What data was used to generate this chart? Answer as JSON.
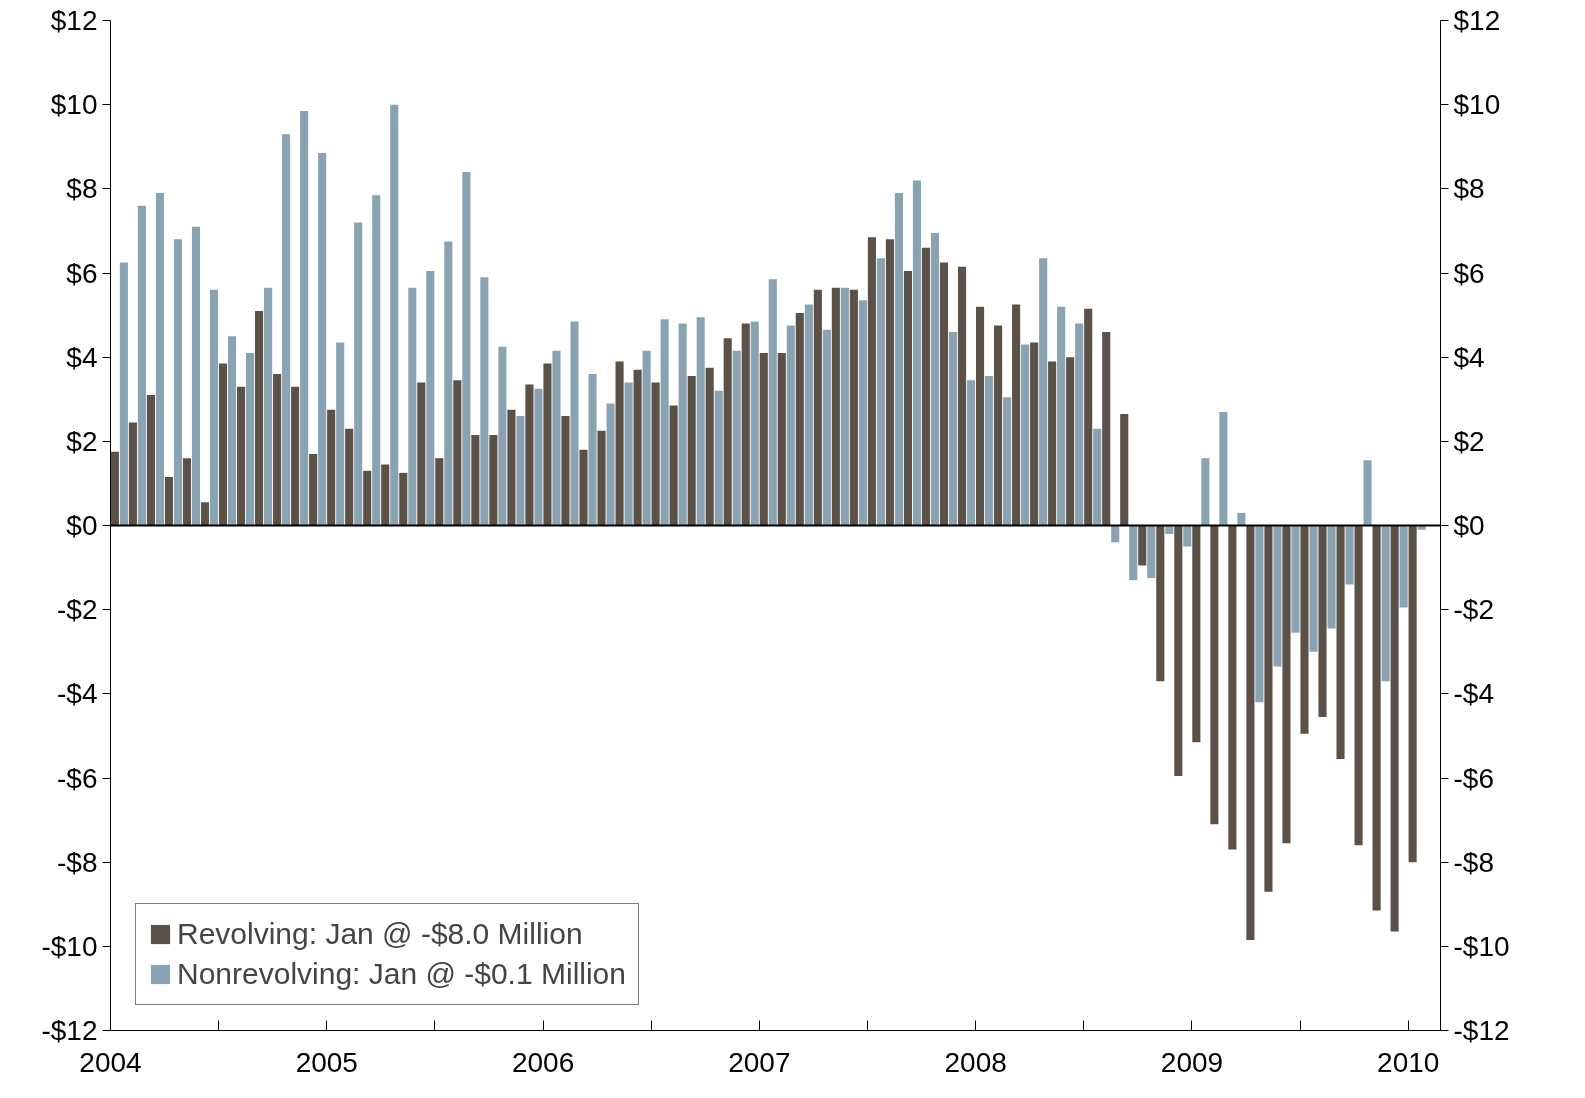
{
  "chart_data": {
    "type": "bar",
    "x": [
      "2004-01-16",
      "2004-02-16",
      "2004-03-16",
      "2004-04-16",
      "2004-05-16",
      "2004-06-16",
      "2004-07-16",
      "2004-08-16",
      "2004-09-16",
      "2004-10-16",
      "2004-11-16",
      "2004-12-16",
      "2005-01-16",
      "2005-02-16",
      "2005-03-16",
      "2005-04-16",
      "2005-05-16",
      "2005-06-16",
      "2005-07-16",
      "2005-08-16",
      "2005-09-16",
      "2005-10-16",
      "2005-11-16",
      "2005-12-16",
      "2006-01-16",
      "2006-02-16",
      "2006-03-16",
      "2006-04-16",
      "2006-05-16",
      "2006-06-16",
      "2006-07-16",
      "2006-08-16",
      "2006-09-16",
      "2006-10-16",
      "2006-11-16",
      "2006-12-16",
      "2007-01-16",
      "2007-02-16",
      "2007-03-16",
      "2007-04-16",
      "2007-05-16",
      "2007-06-16",
      "2007-07-16",
      "2007-08-16",
      "2007-09-16",
      "2007-10-16",
      "2007-11-16",
      "2007-12-16",
      "2008-01-16",
      "2008-02-16",
      "2008-03-16",
      "2008-04-16",
      "2008-05-16",
      "2008-06-16",
      "2008-07-16",
      "2008-08-16",
      "2008-09-16",
      "2008-10-16",
      "2008-11-16",
      "2008-12-16",
      "2009-01-16",
      "2009-02-16",
      "2009-03-16",
      "2009-04-16",
      "2009-05-16",
      "2009-06-16",
      "2009-07-16",
      "2009-08-16",
      "2009-09-16",
      "2009-10-16",
      "2009-11-16",
      "2009-12-16",
      "2010-01-16"
    ],
    "series": [
      {
        "name": "Revolving: Jan @ -$8.0 Million",
        "color": "#5c5147",
        "values": [
          1.75,
          2.45,
          3.1,
          1.15,
          1.6,
          0.55,
          3.85,
          3.3,
          5.1,
          3.6,
          3.3,
          1.7,
          2.75,
          2.3,
          1.3,
          1.45,
          1.25,
          3.4,
          1.6,
          3.45,
          2.15,
          2.15,
          2.75,
          3.35,
          3.85,
          2.6,
          1.8,
          2.25,
          3.9,
          3.7,
          3.4,
          2.85,
          3.55,
          3.75,
          4.45,
          4.8,
          4.1,
          4.1,
          5.05,
          5.6,
          5.65,
          5.6,
          6.85,
          6.8,
          6.05,
          6.6,
          6.25,
          6.15,
          5.2,
          4.75,
          5.25,
          4.35,
          3.9,
          4.0,
          5.15,
          4.6,
          2.65,
          -0.95,
          -3.7,
          -5.95,
          -5.15,
          -7.1,
          -7.7,
          -9.85,
          -8.7,
          -7.55,
          -4.95,
          -4.55,
          -5.55,
          -7.6,
          -9.15,
          -9.65,
          -8.0
        ]
      },
      {
        "name": "Nonrevolving: Jan @ -$0.1 Million",
        "color": "#8aa3b2",
        "values": [
          6.25,
          7.6,
          7.9,
          6.8,
          7.1,
          5.6,
          4.5,
          4.1,
          5.65,
          9.3,
          9.85,
          8.85,
          4.35,
          7.2,
          7.85,
          10.0,
          5.65,
          6.05,
          6.75,
          8.4,
          5.9,
          4.25,
          2.6,
          3.25,
          4.15,
          4.85,
          3.6,
          2.9,
          3.4,
          4.15,
          4.9,
          4.8,
          4.95,
          3.2,
          4.15,
          4.85,
          5.85,
          4.75,
          5.25,
          4.65,
          5.65,
          5.35,
          6.35,
          7.9,
          8.2,
          6.95,
          4.6,
          3.45,
          3.55,
          3.05,
          4.3,
          6.35,
          5.2,
          4.8,
          2.3,
          -0.4,
          -1.3,
          -1.25,
          -0.2,
          -0.5,
          1.6,
          2.7,
          0.3,
          -4.2,
          -3.35,
          -2.55,
          -3.0,
          -2.45,
          -1.4,
          1.55,
          -3.7,
          -1.95,
          -0.1
        ]
      }
    ],
    "xlim": [
      "2004-01",
      "2010-02-25"
    ],
    "xticks": [
      {
        "value": "2004-01",
        "label": "2004"
      },
      {
        "value": "2004-07",
        "label": null
      },
      {
        "value": "2005-01",
        "label": "2005"
      },
      {
        "value": "2005-07",
        "label": null
      },
      {
        "value": "2006-01",
        "label": "2006"
      },
      {
        "value": "2006-07",
        "label": null
      },
      {
        "value": "2007-01",
        "label": "2007"
      },
      {
        "value": "2007-07",
        "label": null
      },
      {
        "value": "2008-01",
        "label": "2008"
      },
      {
        "value": "2008-07",
        "label": null
      },
      {
        "value": "2009-01",
        "label": "2009"
      },
      {
        "value": "2009-07",
        "label": null
      },
      {
        "value": "2010-01",
        "label": "2010"
      }
    ],
    "ylim": [
      -12,
      12
    ],
    "yticks": [
      {
        "value": -12,
        "label": "-$12"
      },
      {
        "value": -10,
        "label": "-$10"
      },
      {
        "value": -8,
        "label": "-$8"
      },
      {
        "value": -6,
        "label": "-$6"
      },
      {
        "value": -4,
        "label": "-$4"
      },
      {
        "value": -2,
        "label": "-$2"
      },
      {
        "value": 0,
        "label": "$0"
      },
      {
        "value": 2,
        "label": "$2"
      },
      {
        "value": 4,
        "label": "$4"
      },
      {
        "value": 6,
        "label": "$6"
      },
      {
        "value": 8,
        "label": "$8"
      },
      {
        "value": 10,
        "label": "$10"
      },
      {
        "value": 12,
        "label": "$12"
      }
    ],
    "y2lim": [
      -12,
      12
    ],
    "y2ticks": [
      {
        "value": -12,
        "label": "-$12"
      },
      {
        "value": -10,
        "label": "-$10"
      },
      {
        "value": -8,
        "label": "-$8"
      },
      {
        "value": -6,
        "label": "-$6"
      },
      {
        "value": -4,
        "label": "-$4"
      },
      {
        "value": -2,
        "label": "-$2"
      },
      {
        "value": 0,
        "label": "$0"
      },
      {
        "value": 2,
        "label": "$2"
      },
      {
        "value": 4,
        "label": "$4"
      },
      {
        "value": 6,
        "label": "$6"
      },
      {
        "value": 8,
        "label": "$8"
      },
      {
        "value": 10,
        "label": "$10"
      },
      {
        "value": 12,
        "label": "$12"
      }
    ],
    "grid": false,
    "ref_lines": [
      {
        "axis": "y",
        "value": 0,
        "color": "#000000"
      }
    ],
    "legend": "bottom left"
  }
}
